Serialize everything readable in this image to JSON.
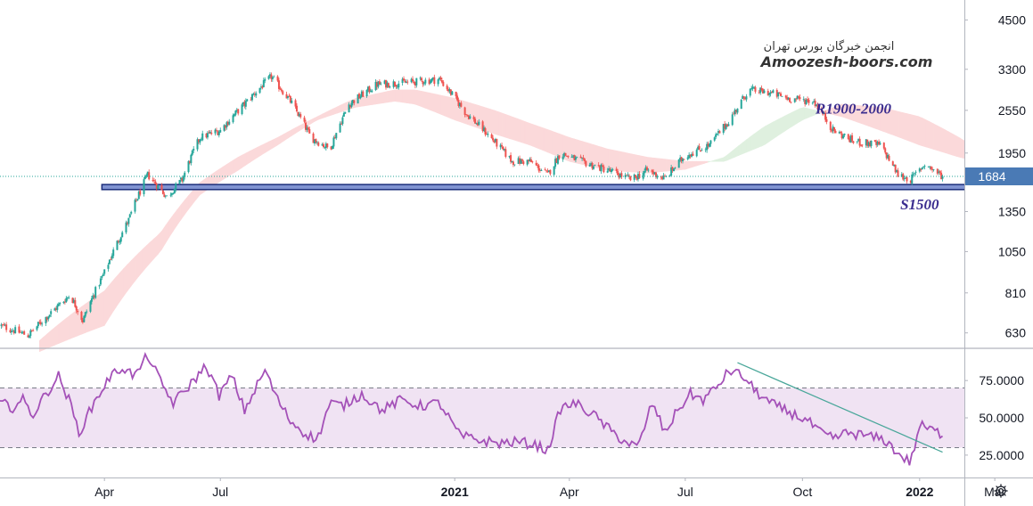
{
  "watermark": {
    "persian": "انجمن خبرگان بورس تهران",
    "english": "Amoozesh-boors.com"
  },
  "chart_data": [
    {
      "type": "candlestick",
      "price_axis": {
        "ticks": [
          630,
          810,
          1050,
          1350,
          1950,
          2550,
          3300,
          4500
        ],
        "tick_labels": [
          "630",
          "810",
          "1050",
          "1350",
          "1950",
          "2550",
          "3300",
          "4500"
        ],
        "scale": "log",
        "range": [
          575,
          5100
        ]
      },
      "current_price": {
        "value": 1684,
        "label": "1684",
        "color": "#4a7ab5"
      },
      "time_axis": {
        "labels": [
          "Apr",
          "Jul",
          "2021",
          "Apr",
          "Jul",
          "Oct",
          "2022",
          "Mar"
        ],
        "dates": [
          "2020-04-01",
          "2020-07-01",
          "2021-01-01",
          "2021-04-01",
          "2021-07-01",
          "2021-10-01",
          "2022-01-01",
          "2022-03-01"
        ],
        "range": [
          "2020-01-10",
          "2022-03-31"
        ]
      },
      "ohlc": {
        "start_date": "2020-01-10",
        "end_date": "2022-01-19",
        "close_anchors": [
          [
            "2020-01-10",
            660
          ],
          [
            "2020-02-01",
            620
          ],
          [
            "2020-02-20",
            720
          ],
          [
            "2020-03-05",
            800
          ],
          [
            "2020-03-15",
            680
          ],
          [
            "2020-04-01",
            920
          ],
          [
            "2020-04-20",
            1280
          ],
          [
            "2020-05-05",
            1700
          ],
          [
            "2020-05-20",
            1480
          ],
          [
            "2020-06-01",
            1650
          ],
          [
            "2020-06-15",
            2150
          ],
          [
            "2020-07-01",
            2250
          ],
          [
            "2020-07-20",
            2650
          ],
          [
            "2020-08-10",
            3150
          ],
          [
            "2020-08-25",
            2700
          ],
          [
            "2020-09-10",
            2150
          ],
          [
            "2020-09-25",
            2000
          ],
          [
            "2020-10-10",
            2650
          ],
          [
            "2020-11-01",
            3000
          ],
          [
            "2020-12-01",
            3050
          ],
          [
            "2020-12-20",
            3100
          ],
          [
            "2021-01-10",
            2500
          ],
          [
            "2021-02-01",
            2100
          ],
          [
            "2021-02-15",
            1850
          ],
          [
            "2021-03-01",
            1850
          ],
          [
            "2021-03-15",
            1700
          ],
          [
            "2021-03-25",
            1950
          ],
          [
            "2021-04-10",
            1850
          ],
          [
            "2021-05-01",
            1750
          ],
          [
            "2021-05-20",
            1650
          ],
          [
            "2021-06-01",
            1750
          ],
          [
            "2021-06-15",
            1660
          ],
          [
            "2021-07-01",
            1920
          ],
          [
            "2021-07-20",
            2050
          ],
          [
            "2021-08-05",
            2400
          ],
          [
            "2021-08-20",
            2900
          ],
          [
            "2021-09-05",
            2850
          ],
          [
            "2021-09-20",
            2750
          ],
          [
            "2021-10-10",
            2700
          ],
          [
            "2021-10-25",
            2250
          ],
          [
            "2021-11-10",
            2100
          ],
          [
            "2021-12-01",
            2050
          ],
          [
            "2021-12-15",
            1700
          ],
          [
            "2021-12-25",
            1650
          ],
          [
            "2022-01-05",
            1820
          ],
          [
            "2022-01-19",
            1684
          ]
        ]
      },
      "ichimoku_cloud": {
        "bull_color": "#dff0df",
        "bear_color": "#fbd9da",
        "span_a": [
          [
            "2020-02-10",
            560
          ],
          [
            "2020-04-01",
            660
          ],
          [
            "2020-05-15",
            1050
          ],
          [
            "2020-06-15",
            1500
          ],
          [
            "2020-07-15",
            1750
          ],
          [
            "2020-08-15",
            2050
          ],
          [
            "2020-09-15",
            2400
          ],
          [
            "2020-10-15",
            2600
          ],
          [
            "2020-11-15",
            2700
          ],
          [
            "2020-12-01",
            2650
          ],
          [
            "2021-01-01",
            2400
          ],
          [
            "2021-02-01",
            2200
          ],
          [
            "2021-03-01",
            2050
          ],
          [
            "2021-04-01",
            1850
          ],
          [
            "2021-05-01",
            1750
          ],
          [
            "2021-06-01",
            1720
          ],
          [
            "2021-07-01",
            1760
          ],
          [
            "2021-08-01",
            1900
          ],
          [
            "2021-09-01",
            2300
          ],
          [
            "2021-10-01",
            2600
          ],
          [
            "2021-11-01",
            2450
          ],
          [
            "2021-12-01",
            2250
          ],
          [
            "2022-01-01",
            2050
          ],
          [
            "2022-02-01",
            1900
          ],
          [
            "2022-02-15",
            1850
          ]
        ],
        "span_b": [
          [
            "2020-02-10",
            600
          ],
          [
            "2020-04-01",
            820
          ],
          [
            "2020-05-15",
            1180
          ],
          [
            "2020-06-15",
            1620
          ],
          [
            "2020-07-15",
            1900
          ],
          [
            "2020-08-15",
            2150
          ],
          [
            "2020-09-15",
            2450
          ],
          [
            "2020-10-15",
            2750
          ],
          [
            "2020-11-15",
            2900
          ],
          [
            "2020-12-01",
            2900
          ],
          [
            "2021-01-01",
            2750
          ],
          [
            "2021-02-01",
            2550
          ],
          [
            "2021-03-01",
            2350
          ],
          [
            "2021-04-01",
            2150
          ],
          [
            "2021-05-01",
            2000
          ],
          [
            "2021-06-01",
            1900
          ],
          [
            "2021-07-01",
            1850
          ],
          [
            "2021-08-01",
            1850
          ],
          [
            "2021-09-01",
            2050
          ],
          [
            "2021-10-01",
            2400
          ],
          [
            "2021-11-01",
            2650
          ],
          [
            "2021-12-01",
            2600
          ],
          [
            "2022-01-01",
            2450
          ],
          [
            "2022-02-01",
            2150
          ],
          [
            "2022-02-15",
            2000
          ]
        ]
      },
      "support_band": {
        "from": "2020-03-30",
        "to": "2022-02-20",
        "low": 1550,
        "high": 1600,
        "fill": "#8093d1",
        "stroke": "#1a2c7a"
      },
      "annotations": [
        {
          "text": "R1900-2000",
          "date": "2021-11-10",
          "price": 2500
        },
        {
          "text": "S1500",
          "date": "2022-01-01",
          "price": 1370
        }
      ],
      "colors": {
        "up": "#26a69a",
        "down": "#ef5350"
      }
    },
    {
      "type": "line",
      "indicator": "oscillator",
      "y_axis": {
        "ticks": [
          25,
          50,
          75
        ],
        "tick_labels": [
          "25.0000",
          "50.0000",
          "75.0000"
        ],
        "range": [
          10,
          96
        ]
      },
      "band": {
        "upper": 70,
        "lower": 30,
        "fill": "#f0e3f3"
      },
      "line_color": "#a451b8",
      "anchors": [
        [
          "2020-01-10",
          60
        ],
        [
          "2020-01-20",
          57
        ],
        [
          "2020-01-28",
          62
        ],
        [
          "2020-02-05",
          52
        ],
        [
          "2020-02-15",
          66
        ],
        [
          "2020-02-25",
          78
        ],
        [
          "2020-03-05",
          60
        ],
        [
          "2020-03-12",
          40
        ],
        [
          "2020-03-25",
          62
        ],
        [
          "2020-04-05",
          77
        ],
        [
          "2020-04-15",
          84
        ],
        [
          "2020-04-25",
          78
        ],
        [
          "2020-05-05",
          92
        ],
        [
          "2020-05-15",
          74
        ],
        [
          "2020-05-25",
          60
        ],
        [
          "2020-06-05",
          70
        ],
        [
          "2020-06-20",
          85
        ],
        [
          "2020-06-30",
          65
        ],
        [
          "2020-07-10",
          78
        ],
        [
          "2020-07-20",
          55
        ],
        [
          "2020-08-05",
          82
        ],
        [
          "2020-08-15",
          62
        ],
        [
          "2020-08-25",
          48
        ],
        [
          "2020-09-05",
          40
        ],
        [
          "2020-09-15",
          35
        ],
        [
          "2020-09-25",
          60
        ],
        [
          "2020-10-05",
          58
        ],
        [
          "2020-10-20",
          66
        ],
        [
          "2020-11-05",
          55
        ],
        [
          "2020-11-20",
          62
        ],
        [
          "2020-12-05",
          58
        ],
        [
          "2020-12-20",
          60
        ],
        [
          "2021-01-05",
          38
        ],
        [
          "2021-01-20",
          35
        ],
        [
          "2021-02-05",
          33
        ],
        [
          "2021-02-20",
          34
        ],
        [
          "2021-03-05",
          32
        ],
        [
          "2021-03-15",
          28
        ],
        [
          "2021-03-25",
          56
        ],
        [
          "2021-04-05",
          60
        ],
        [
          "2021-04-20",
          52
        ],
        [
          "2021-05-05",
          40
        ],
        [
          "2021-05-15",
          34
        ],
        [
          "2021-05-25",
          30
        ],
        [
          "2021-06-05",
          60
        ],
        [
          "2021-06-15",
          40
        ],
        [
          "2021-06-25",
          55
        ],
        [
          "2021-07-05",
          66
        ],
        [
          "2021-07-15",
          62
        ],
        [
          "2021-07-25",
          70
        ],
        [
          "2021-08-05",
          82
        ],
        [
          "2021-08-15",
          78
        ],
        [
          "2021-08-25",
          68
        ],
        [
          "2021-09-05",
          60
        ],
        [
          "2021-09-15",
          56
        ],
        [
          "2021-09-25",
          52
        ],
        [
          "2021-10-05",
          48
        ],
        [
          "2021-10-15",
          40
        ],
        [
          "2021-10-25",
          36
        ],
        [
          "2021-11-05",
          40
        ],
        [
          "2021-11-20",
          38
        ],
        [
          "2021-12-05",
          35
        ],
        [
          "2021-12-15",
          26
        ],
        [
          "2021-12-25",
          20
        ],
        [
          "2022-01-01",
          45
        ],
        [
          "2022-01-10",
          42
        ],
        [
          "2022-01-19",
          39
        ]
      ],
      "trendline": {
        "from": [
          "2021-08-11",
          87
        ],
        "to": [
          "2022-01-19",
          27
        ],
        "color": "#4aa79a"
      }
    }
  ]
}
